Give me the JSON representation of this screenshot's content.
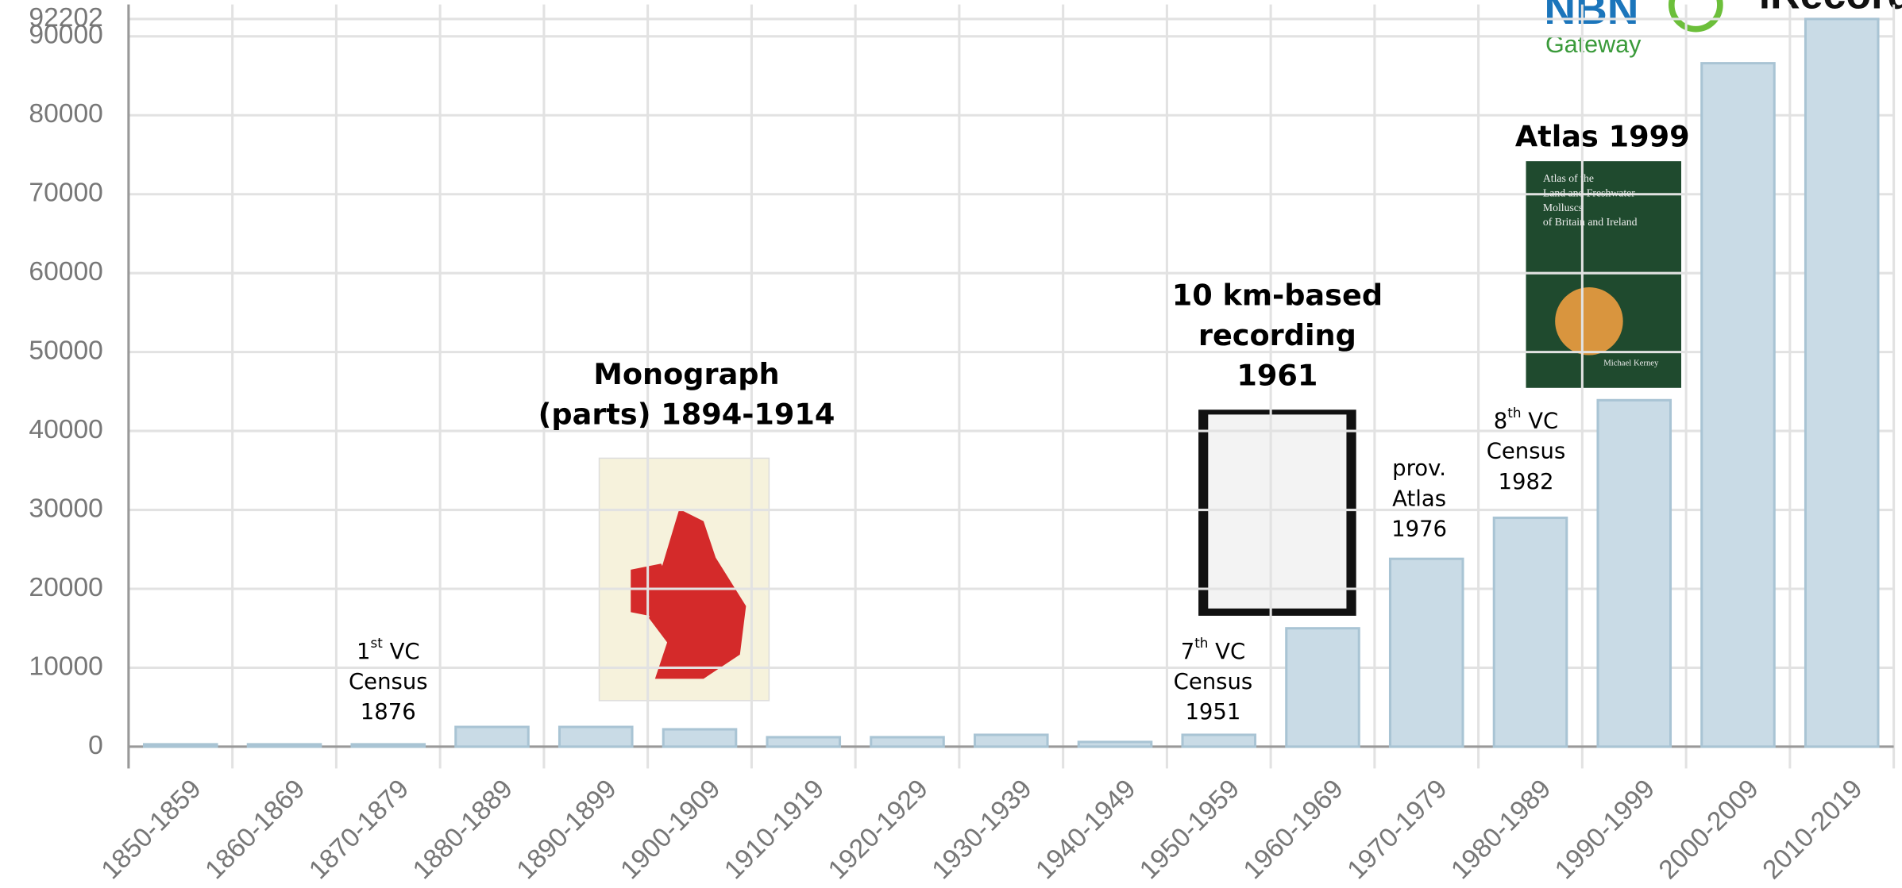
{
  "chart_data": {
    "type": "bar",
    "categories": [
      "1850-1859",
      "1860-1869",
      "1870-1879",
      "1880-1889",
      "1890-1899",
      "1900-1909",
      "1910-1919",
      "1920-1929",
      "1930-1939",
      "1940-1949",
      "1950-1959",
      "1960-1969",
      "1970-1979",
      "1980-1989",
      "1990-1999",
      "2000-2009",
      "2010-2019"
    ],
    "values": [
      300,
      300,
      300,
      2500,
      2500,
      2200,
      1200,
      1200,
      1500,
      600,
      1500,
      15000,
      23800,
      29000,
      43900,
      86600,
      92202
    ],
    "color": "#c9dbe6",
    "ylim": [
      0,
      92202
    ],
    "yticks": [
      0,
      10000,
      20000,
      30000,
      40000,
      50000,
      60000,
      70000,
      80000,
      90000,
      92202
    ],
    "grid": true,
    "annotations": [
      {
        "lines": [
          {
            "base": "1",
            "sup": "st",
            "after": " VC"
          },
          "Census",
          "1876"
        ]
      },
      {
        "lines": [
          {
            "base": "7",
            "sup": "th",
            "after": " VC"
          },
          "Census",
          "1951"
        ]
      },
      {
        "lines": [
          "prov.",
          "Atlas",
          "1976"
        ]
      },
      {
        "lines": [
          {
            "base": "8",
            "sup": "th",
            "after": " VC"
          },
          "Census",
          "1982"
        ]
      }
    ],
    "captions": [
      {
        "lines": [
          "Monograph",
          "(parts) 1894-1914"
        ]
      },
      {
        "lines": [
          "10 km-based",
          "recording",
          "1961"
        ]
      },
      {
        "lines": [
          "Atlas 1999"
        ]
      }
    ]
  },
  "book_cover": {
    "title_lines": [
      "Atlas of the",
      "Land and Freshwater",
      "Molluscs",
      "of Britain and Ireland"
    ],
    "author": "Michael Kerney"
  },
  "logos": {
    "nbn": "NBN",
    "gateway": "Gateway",
    "irecord": "iRecord"
  }
}
